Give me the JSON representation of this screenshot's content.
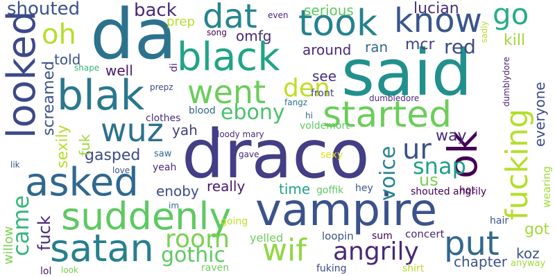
{
  "words": [
    {
      "text": "draco",
      "color": "#433e85"
    },
    {
      "text": "said",
      "color": "#21908d"
    },
    {
      "text": "da",
      "color": "#2c728e"
    },
    {
      "text": "vampire",
      "color": "#3b528b"
    },
    {
      "text": "suddenly",
      "color": "#5ec962"
    },
    {
      "text": "black",
      "color": "#20a486"
    },
    {
      "text": "blak",
      "color": "#2a788e"
    },
    {
      "text": "took",
      "color": "#26828e"
    },
    {
      "text": "asked",
      "color": "#31688e"
    },
    {
      "text": "satan",
      "color": "#277f8e"
    },
    {
      "text": "started",
      "color": "#6ccd5a"
    },
    {
      "text": "looked",
      "color": "#3e4989"
    },
    {
      "text": "wuz",
      "color": "#2c728e"
    },
    {
      "text": "know",
      "color": "#39568c"
    },
    {
      "text": "went",
      "color": "#6ccd5a"
    },
    {
      "text": "fucking",
      "color": "#b5de2b"
    },
    {
      "text": "dat",
      "color": "#25858e"
    },
    {
      "text": "go",
      "color": "#28ae80"
    },
    {
      "text": "ok",
      "color": "#440154"
    },
    {
      "text": "put",
      "color": "#31688e"
    },
    {
      "text": "wif",
      "color": "#90d743"
    },
    {
      "text": "ebony",
      "color": "#4ac16d"
    },
    {
      "text": "room",
      "color": "#7ad151"
    },
    {
      "text": "angrily",
      "color": "#482878"
    },
    {
      "text": "oh",
      "color": "#b5de2b"
    },
    {
      "text": "den",
      "color": "#bddf26"
    },
    {
      "text": "came",
      "color": "#35b779"
    },
    {
      "text": "ur",
      "color": "#3b528b"
    },
    {
      "text": "snap",
      "color": "#1fa187"
    },
    {
      "text": "gothic",
      "color": "#5ec962"
    },
    {
      "text": "voice",
      "color": "#25858e"
    },
    {
      "text": "screamed",
      "color": "#3b528b"
    },
    {
      "text": "shouted",
      "color": "#3b528b"
    },
    {
      "text": "back",
      "color": "#482878"
    },
    {
      "text": "lucian",
      "color": "#472d7b"
    },
    {
      "text": "red",
      "color": "#3e4989"
    },
    {
      "text": "mcr",
      "color": "#414487"
    },
    {
      "text": "kill",
      "color": "#a0da39"
    },
    {
      "text": "omfg",
      "color": "#482878"
    },
    {
      "text": "around",
      "color": "#482878"
    },
    {
      "text": "ran",
      "color": "#31688e"
    },
    {
      "text": "see",
      "color": "#472d7b"
    },
    {
      "text": "told",
      "color": "#3b528b"
    },
    {
      "text": "well",
      "color": "#48186a"
    },
    {
      "text": "serious",
      "color": "#5ec962"
    },
    {
      "text": "prep",
      "color": "#b5de2b"
    },
    {
      "text": "gasped",
      "color": "#3e4989"
    },
    {
      "text": "fuk",
      "color": "#a0da39"
    },
    {
      "text": "sexily",
      "color": "#b5de2b"
    },
    {
      "text": "yah",
      "color": "#433e85"
    },
    {
      "text": "enoby",
      "color": "#3e4989"
    },
    {
      "text": "really",
      "color": "#48186a"
    },
    {
      "text": "time",
      "color": "#1fa187"
    },
    {
      "text": "us",
      "color": "#7ad151"
    },
    {
      "text": "way",
      "color": "#472d7b"
    },
    {
      "text": "everyone",
      "color": "#3e4989"
    },
    {
      "text": "got",
      "color": "#a0da39"
    },
    {
      "text": "koz",
      "color": "#3b528b"
    },
    {
      "text": "chapter",
      "color": "#3b528b"
    },
    {
      "text": "fuck",
      "color": "#482878"
    },
    {
      "text": "willow",
      "color": "#7ad151"
    },
    {
      "text": "yelled",
      "color": "#6ccd5a"
    },
    {
      "text": "concert",
      "color": "#482878"
    },
    {
      "text": "loopin",
      "color": "#3b528b"
    },
    {
      "text": "sum",
      "color": "#440154"
    },
    {
      "text": "raven",
      "color": "#6ccd5a"
    },
    {
      "text": "lol",
      "color": "#48186a"
    },
    {
      "text": "look",
      "color": "#7ad151"
    },
    {
      "text": "fuking",
      "color": "#3e4989"
    },
    {
      "text": "shirt",
      "color": "#b5de2b"
    },
    {
      "text": "anyway",
      "color": "#a0da39"
    },
    {
      "text": "wearing",
      "color": "#a0da39"
    },
    {
      "text": "hair",
      "color": "#3b528b"
    },
    {
      "text": "going",
      "color": "#bddf26"
    },
    {
      "text": "im",
      "color": "#31688e"
    },
    {
      "text": "goffik",
      "color": "#5ec962"
    },
    {
      "text": "hey",
      "color": "#3b528b"
    },
    {
      "text": "shouted angrily",
      "color": "#440154"
    },
    {
      "text": "hot",
      "color": "#440154"
    },
    {
      "text": "sexy",
      "color": "#dde318"
    },
    {
      "text": "gave",
      "color": "#482878"
    },
    {
      "text": "loody mary",
      "color": "#482878"
    },
    {
      "text": "voldemort",
      "color": "#5ec962"
    },
    {
      "text": "hi",
      "color": "#31688e"
    },
    {
      "text": "fangz",
      "color": "#2c728e"
    },
    {
      "text": "dumbledore",
      "color": "#482878"
    },
    {
      "text": "dumblydore",
      "color": "#48186a"
    },
    {
      "text": "sadly",
      "color": "#b5de2b"
    },
    {
      "text": "front",
      "color": "#433e85"
    },
    {
      "text": "blood",
      "color": "#31688e"
    },
    {
      "text": "clothes",
      "color": "#472d7b"
    },
    {
      "text": "prepz",
      "color": "#3e4989"
    },
    {
      "text": "di",
      "color": "#481f70"
    },
    {
      "text": "shape",
      "color": "#35b779"
    },
    {
      "text": "saw",
      "color": "#31688e"
    },
    {
      "text": "yeah",
      "color": "#482878"
    },
    {
      "text": "love",
      "color": "#3b528b"
    },
    {
      "text": "lik",
      "color": "#3b528b"
    },
    {
      "text": "song",
      "color": "#440154"
    },
    {
      "text": "even",
      "color": "#481f70"
    }
  ]
}
